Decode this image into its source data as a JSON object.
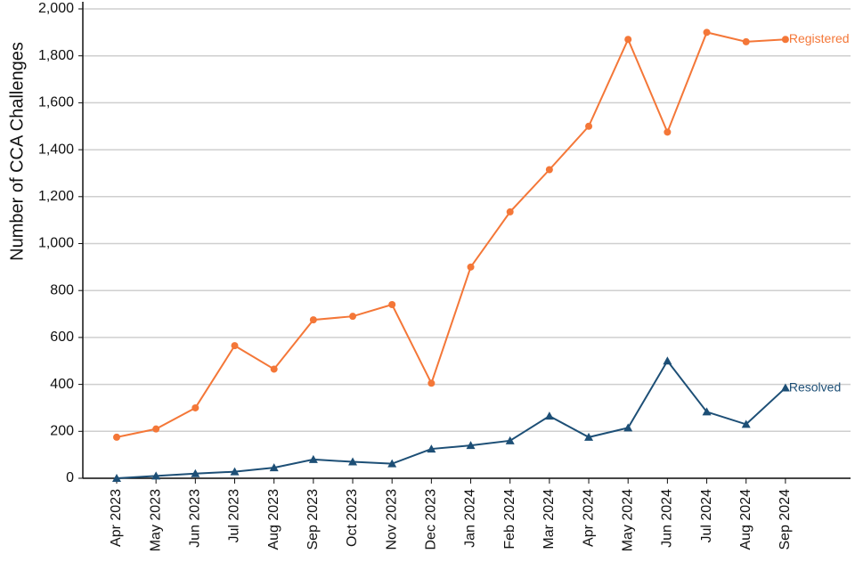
{
  "chart_data": {
    "type": "line",
    "y_label": "Number of CCA Challenges",
    "categories": [
      "Apr 2023",
      "May 2023",
      "Jun 2023",
      "Jul 2023",
      "Aug 2023",
      "Sep 2023",
      "Oct 2023",
      "Nov 2023",
      "Dec 2023",
      "Jan 2024",
      "Feb 2024",
      "Mar 2024",
      "Apr 2024",
      "May 2024",
      "Jun 2024",
      "Jul 2024",
      "Aug 2024",
      "Sep 2024"
    ],
    "series": [
      {
        "name": "Registered",
        "color": "#f47738",
        "marker": "circle",
        "values": [
          175,
          210,
          300,
          565,
          465,
          675,
          690,
          740,
          405,
          900,
          1135,
          1315,
          1500,
          1870,
          1475,
          1900,
          1860,
          1870
        ]
      },
      {
        "name": "Resolved",
        "color": "#1d4f76",
        "marker": "triangle",
        "values": [
          0,
          10,
          20,
          28,
          45,
          80,
          70,
          62,
          125,
          140,
          160,
          265,
          175,
          215,
          500,
          283,
          230,
          385
        ]
      }
    ],
    "ylim": [
      0,
      2000
    ],
    "yticks": [
      0,
      200,
      400,
      600,
      800,
      {
        "value": 1000,
        "label": "1,000"
      },
      {
        "value": 1200,
        "label": "1,200"
      },
      {
        "value": 1400,
        "label": "1,400"
      },
      {
        "value": 1600,
        "label": "1,600"
      },
      {
        "value": 1800,
        "label": "1,800"
      },
      {
        "value": 2000,
        "label": "2,000"
      }
    ],
    "grid": true
  }
}
